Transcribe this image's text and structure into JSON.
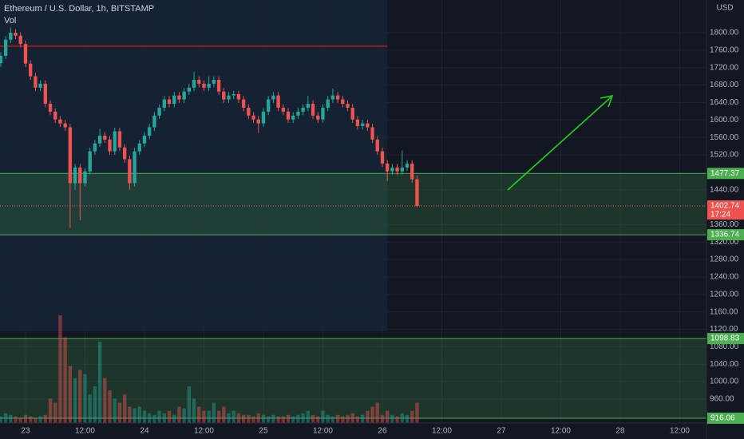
{
  "chart_data": {
    "type": "candlestick",
    "title": "Ethereum / U.S. Dollar, 1h, BITSTAMP",
    "volume_label": "Vol",
    "currency": "USD",
    "x": [
      -5,
      -4,
      -3,
      -2,
      -1,
      0,
      1,
      2,
      3,
      4,
      5,
      6,
      7,
      8,
      9,
      10,
      11,
      12,
      13,
      14,
      15,
      16,
      17,
      18,
      19,
      20,
      21,
      22,
      23,
      24,
      25,
      26,
      27,
      28,
      29,
      30,
      31,
      32,
      33,
      34,
      35,
      36,
      37,
      38,
      39,
      40,
      41,
      42,
      43,
      44,
      45,
      46,
      47,
      48,
      49,
      50,
      51,
      52,
      53,
      54,
      55,
      56,
      57,
      58,
      59,
      60,
      61,
      62,
      63,
      64,
      65,
      66,
      67,
      68,
      69,
      70,
      71,
      72,
      73,
      74,
      75,
      76,
      77,
      78,
      79
    ],
    "open": [
      1730,
      1747,
      1784,
      1800,
      1793,
      1774,
      1729,
      1700,
      1674,
      1683,
      1637,
      1619,
      1601,
      1592,
      1583,
      1455,
      1491,
      1455,
      1482,
      1528,
      1546,
      1564,
      1555,
      1528,
      1574,
      1537,
      1510,
      1455,
      1528,
      1546,
      1564,
      1583,
      1610,
      1628,
      1647,
      1637,
      1656,
      1647,
      1665,
      1674,
      1692,
      1683,
      1674,
      1683,
      1692,
      1665,
      1647,
      1656,
      1659,
      1647,
      1628,
      1610,
      1601,
      1592,
      1619,
      1647,
      1656,
      1628,
      1619,
      1601,
      1610,
      1619,
      1628,
      1637,
      1610,
      1601,
      1628,
      1647,
      1656,
      1647,
      1637,
      1628,
      1601,
      1586,
      1592,
      1583,
      1555,
      1528,
      1500,
      1482,
      1491,
      1482,
      1491,
      1500,
      1464
    ],
    "high": [
      1755,
      1792,
      1812,
      1808,
      1801,
      1782,
      1737,
      1708,
      1691,
      1691,
      1645,
      1627,
      1609,
      1600,
      1591,
      1499,
      1499,
      1490,
      1536,
      1554,
      1580,
      1572,
      1563,
      1582,
      1582,
      1545,
      1518,
      1536,
      1554,
      1572,
      1591,
      1618,
      1636,
      1655,
      1655,
      1664,
      1664,
      1673,
      1682,
      1710,
      1700,
      1691,
      1700,
      1700,
      1700,
      1673,
      1664,
      1667,
      1667,
      1655,
      1636,
      1618,
      1609,
      1627,
      1655,
      1664,
      1664,
      1636,
      1627,
      1618,
      1627,
      1636,
      1655,
      1645,
      1618,
      1636,
      1655,
      1672,
      1664,
      1655,
      1645,
      1636,
      1609,
      1600,
      1600,
      1591,
      1563,
      1536,
      1508,
      1499,
      1499,
      1530,
      1508,
      1508,
      1472
    ],
    "low": [
      1722,
      1739,
      1776,
      1785,
      1766,
      1721,
      1692,
      1666,
      1666,
      1629,
      1611,
      1593,
      1584,
      1575,
      1352,
      1440,
      1370,
      1447,
      1474,
      1520,
      1538,
      1547,
      1520,
      1520,
      1529,
      1502,
      1440,
      1447,
      1520,
      1538,
      1556,
      1575,
      1602,
      1620,
      1629,
      1629,
      1639,
      1639,
      1657,
      1666,
      1675,
      1666,
      1666,
      1675,
      1657,
      1639,
      1639,
      1648,
      1639,
      1620,
      1602,
      1593,
      1570,
      1584,
      1611,
      1639,
      1620,
      1611,
      1593,
      1593,
      1602,
      1611,
      1620,
      1602,
      1593,
      1593,
      1620,
      1639,
      1639,
      1629,
      1620,
      1593,
      1578,
      1578,
      1575,
      1547,
      1520,
      1492,
      1460,
      1474,
      1474,
      1474,
      1483,
      1456,
      1400
    ],
    "close": [
      1747,
      1784,
      1800,
      1793,
      1774,
      1729,
      1700,
      1674,
      1683,
      1637,
      1619,
      1601,
      1592,
      1583,
      1455,
      1491,
      1455,
      1482,
      1528,
      1546,
      1564,
      1555,
      1528,
      1574,
      1537,
      1510,
      1455,
      1528,
      1546,
      1564,
      1583,
      1610,
      1628,
      1647,
      1637,
      1656,
      1647,
      1665,
      1674,
      1692,
      1683,
      1674,
      1683,
      1692,
      1665,
      1647,
      1656,
      1659,
      1647,
      1628,
      1610,
      1601,
      1592,
      1619,
      1647,
      1656,
      1628,
      1619,
      1601,
      1610,
      1619,
      1628,
      1637,
      1610,
      1601,
      1628,
      1647,
      1656,
      1647,
      1637,
      1628,
      1601,
      1586,
      1592,
      1583,
      1555,
      1528,
      1500,
      1482,
      1491,
      1482,
      1491,
      1500,
      1464,
      1402.74
    ],
    "volume": [
      8,
      12,
      10,
      8,
      6,
      10,
      8,
      6,
      8,
      10,
      30,
      25,
      132,
      105,
      70,
      55,
      65,
      60,
      35,
      45,
      100,
      55,
      40,
      30,
      25,
      35,
      20,
      18,
      20,
      15,
      12,
      10,
      15,
      12,
      15,
      10,
      20,
      18,
      45,
      30,
      20,
      15,
      15,
      25,
      15,
      20,
      12,
      15,
      12,
      10,
      10,
      8,
      12,
      10,
      8,
      10,
      8,
      8,
      10,
      8,
      10,
      12,
      15,
      10,
      8,
      15,
      10,
      8,
      10,
      8,
      10,
      12,
      8,
      10,
      15,
      20,
      25,
      10,
      15,
      10,
      8,
      12,
      10,
      15,
      25
    ],
    "up_color": "#26a69a",
    "down_color": "#ef5350",
    "xlim": [
      -5.15,
      137.4
    ],
    "xticks": [
      {
        "value": 0,
        "label": "23"
      },
      {
        "value": 12,
        "label": "12:00"
      },
      {
        "value": 24,
        "label": "24"
      },
      {
        "value": 36,
        "label": "12:00"
      },
      {
        "value": 48,
        "label": "25"
      },
      {
        "value": 60,
        "label": "12:00"
      },
      {
        "value": 72,
        "label": "26"
      },
      {
        "value": 84,
        "label": "12:00"
      },
      {
        "value": 96,
        "label": "27"
      },
      {
        "value": 108,
        "label": "12:00"
      },
      {
        "value": 120,
        "label": "28"
      },
      {
        "value": 132,
        "label": "12:00"
      }
    ],
    "ylim": [
      905,
      1875
    ],
    "yticks": [
      {
        "value": 1800,
        "label": "1800.00"
      },
      {
        "value": 1760,
        "label": "1760.00"
      },
      {
        "value": 1720,
        "label": "1720.00"
      },
      {
        "value": 1680,
        "label": "1680.00"
      },
      {
        "value": 1640,
        "label": "1640.00"
      },
      {
        "value": 1600,
        "label": "1600.00"
      },
      {
        "value": 1560,
        "label": "1560.00"
      },
      {
        "value": 1520,
        "label": "1520.00"
      },
      {
        "value": 1440,
        "label": "1440.00"
      },
      {
        "value": 1360,
        "label": "1360.00"
      },
      {
        "value": 1320,
        "label": "1320.00"
      },
      {
        "value": 1280,
        "label": "1280.00"
      },
      {
        "value": 1240,
        "label": "1240.00"
      },
      {
        "value": 1200,
        "label": "1200.00"
      },
      {
        "value": 1160,
        "label": "1160.00"
      },
      {
        "value": 1120,
        "label": "1120.00"
      },
      {
        "value": 1080,
        "label": "1080.00"
      },
      {
        "value": 1040,
        "label": "1040.00"
      },
      {
        "value": 1000,
        "label": "1000.00"
      },
      {
        "value": 960,
        "label": "960.00"
      }
    ],
    "grid": true,
    "zones": [
      {
        "top": 1477.37,
        "bottom": 1336.74,
        "color": "#4caf50"
      },
      {
        "top": 1098.83,
        "bottom": 916.06,
        "color": "#4caf50"
      }
    ],
    "highlight_end": 73,
    "resistance": 1769,
    "resistance_color": "#b71c1c",
    "last_price": 1402.74,
    "last_price_timer": "17:24"
  }
}
